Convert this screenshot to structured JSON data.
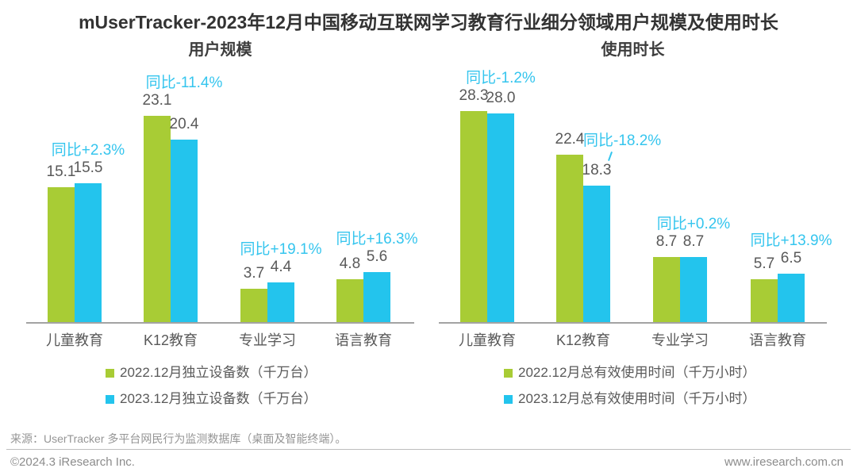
{
  "page": {
    "title": "mUserTracker-2023年12月中国移动互联网学习教育行业细分领域用户规模及使用时长",
    "source_note": "来源：UserTracker 多平台网民行为监测数据库（桌面及智能终端）。",
    "copyright": "©2024.3 iResearch Inc.",
    "website": "www.iresearch.com.cn"
  },
  "colors": {
    "series_2022_green": "#a8cc35",
    "series_2023_blue": "#23c4ed",
    "yoy_text_blue": "#35c5ee",
    "value_text_gray": "#595959",
    "axis_gray": "#a3a3a3"
  },
  "chart_data": [
    {
      "id": "user-scale",
      "type": "bar",
      "title": "用户规模",
      "categories": [
        "儿童教育",
        "K12教育",
        "专业学习",
        "语言教育"
      ],
      "series": [
        {
          "name": "2022.12月独立设备数（千万台）",
          "color": "#a8cc35",
          "values": [
            15.1,
            23.1,
            3.7,
            4.8
          ],
          "labels": [
            "15.1",
            "23.1",
            "3.7",
            "4.8"
          ]
        },
        {
          "name": "2023.12月独立设备数（千万台）",
          "color": "#23c4ed",
          "values": [
            15.5,
            20.4,
            4.4,
            5.6
          ],
          "labels": [
            "15.5",
            "20.4",
            "4.4",
            "5.6"
          ]
        }
      ],
      "yoy_labels": [
        "同比+2.3%",
        "同比-11.4%",
        "同比+19.1%",
        "同比+16.3%"
      ],
      "yoy_placement": [
        "above",
        "above",
        "above",
        "above"
      ],
      "ylim": [
        0,
        30
      ],
      "grid": false,
      "legend_position": "bottom"
    },
    {
      "id": "usage-time",
      "type": "bar",
      "title": "使用时长",
      "categories": [
        "儿童教育",
        "K12教育",
        "专业学习",
        "语言教育"
      ],
      "series": [
        {
          "name": "2022.12月总有效使用时间（千万小时）",
          "color": "#a8cc35",
          "values": [
            28.3,
            22.4,
            8.7,
            5.7
          ],
          "labels": [
            "28.3",
            "22.4",
            "8.7",
            "5.7"
          ]
        },
        {
          "name": "2023.12月总有效使用时间（千万小时）",
          "color": "#23c4ed",
          "values": [
            28.0,
            18.3,
            8.7,
            6.5
          ],
          "labels": [
            "28.0",
            "18.3",
            "8.7",
            "6.5"
          ]
        }
      ],
      "yoy_labels": [
        "同比-1.2%",
        "同比-18.2%",
        "同比+0.2%",
        "同比+13.9%"
      ],
      "yoy_placement": [
        "above",
        "beside",
        "above",
        "above"
      ],
      "ylim": [
        0,
        30
      ],
      "grid": false,
      "legend_position": "bottom"
    }
  ]
}
